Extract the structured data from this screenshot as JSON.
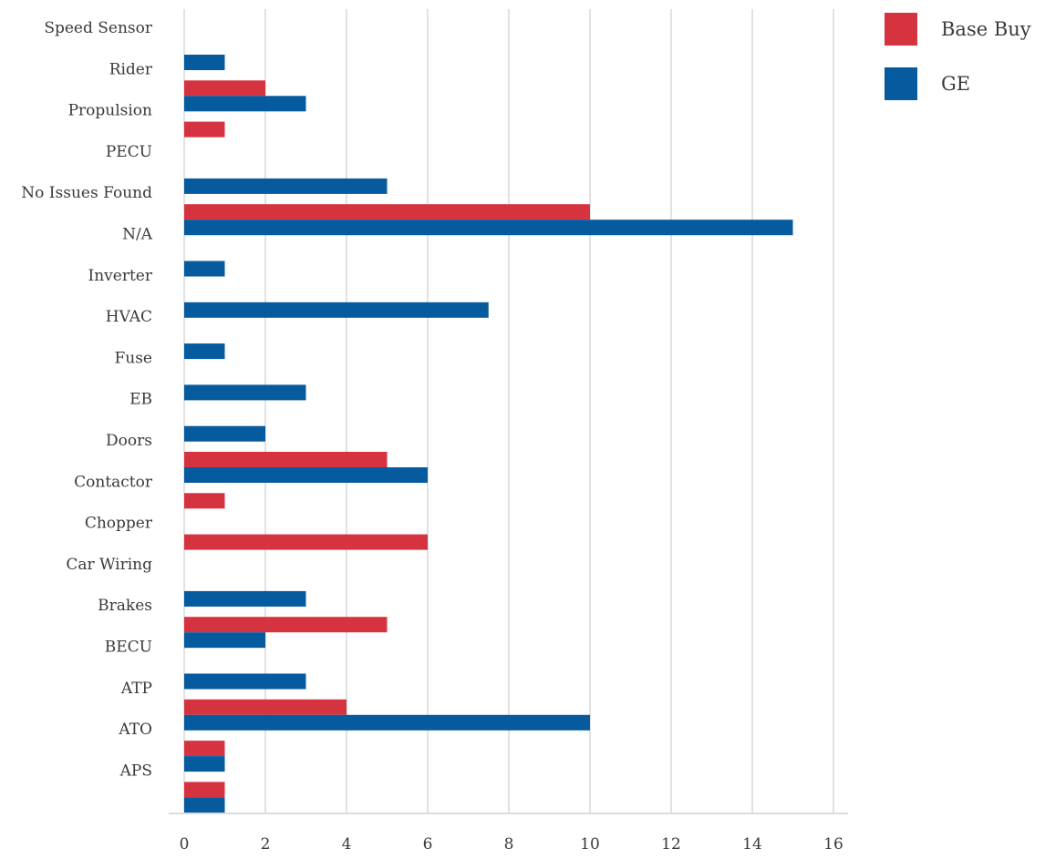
{
  "chart_data": {
    "type": "bar",
    "orientation": "horizontal",
    "categories": [
      "Speed Sensor",
      "Rider",
      "Propulsion",
      "PECU",
      "No Issues Found",
      "N/A",
      "Inverter",
      "HVAC",
      "Fuse",
      "EB",
      "Doors",
      "Contactor",
      "Chopper",
      "Car Wiring",
      "Brakes",
      "BECU",
      "ATP",
      "ATO",
      "APS"
    ],
    "series": [
      {
        "name": "Base Buy",
        "color": "#d63341",
        "values": [
          0,
          2,
          1,
          0,
          10,
          0,
          0,
          0,
          0,
          0,
          5,
          1,
          6,
          0,
          5,
          0,
          4,
          1,
          1
        ]
      },
      {
        "name": "GE",
        "color": "#065a9e",
        "values": [
          1,
          3,
          0,
          5,
          15,
          1,
          7.5,
          1,
          3,
          2,
          6,
          0,
          0,
          3,
          2,
          3,
          10,
          1,
          1
        ]
      }
    ],
    "xlim": [
      0,
      16
    ],
    "xticks": [
      "0",
      "2",
      "4",
      "6",
      "8",
      "10",
      "12",
      "14",
      "16"
    ],
    "grid": true,
    "legend_position": "top-right"
  }
}
